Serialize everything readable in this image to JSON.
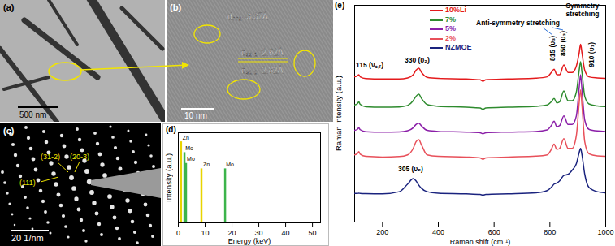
{
  "images": [
    {
      "panel": "(a)",
      "scale_bar": "500 nm"
    },
    {
      "panel": "(b)",
      "scale_bar": "10 nm",
      "d_spacings": [
        "d₀₀₂=3.37Å",
        "d₂₂₋₁=2.62Å",
        "d₃₁₋₁=2.82Å"
      ]
    },
    {
      "panel": "(c)",
      "scale_bar": "20 1/nm",
      "planes": [
        "(31-2)",
        "(20-3)",
        "(111)"
      ]
    }
  ],
  "chart_data": [
    {
      "panel": "(d)",
      "type": "stem",
      "xlabel": "Energy (keV)",
      "ylabel": "Intensity (a.u.)",
      "categories": [
        "Zn",
        "Mo",
        "Mo",
        "Zn",
        "Mo"
      ],
      "x": [
        1.01,
        2.29,
        2.87,
        8.63,
        17.44
      ],
      "values": [
        0.9,
        0.78,
        0.66,
        0.6,
        0.6
      ],
      "colors": [
        "#e8d400",
        "#3cb44b",
        "#3cb44b",
        "#e8d400",
        "#3cb44b"
      ],
      "xlim": [
        0,
        53
      ],
      "xticks": [
        0,
        10,
        20,
        30,
        40,
        50
      ],
      "ylim": [
        0,
        1
      ],
      "tick_labels": "x"
    },
    {
      "panel": "(e)",
      "type": "line",
      "xlabel": "Raman shift (cm⁻¹)",
      "ylabel": "Raman intensity (a.u.)",
      "x": [
        100,
        110,
        115,
        120,
        140,
        200,
        260,
        290,
        310,
        320,
        330,
        340,
        360,
        400,
        500,
        550,
        560,
        570,
        650,
        750,
        790,
        805,
        815,
        825,
        835,
        850,
        865,
        880,
        895,
        905,
        910,
        915,
        925,
        940,
        970,
        1000
      ],
      "series": [
        {
          "name": "10%Li",
          "color": "#e41a1c",
          "values": [
            67,
            67.5,
            68,
            67,
            66.2,
            66,
            66,
            66.5,
            68,
            70,
            71,
            69,
            66.8,
            66.3,
            66,
            65.6,
            65,
            65.6,
            66,
            66.4,
            67,
            69,
            70.5,
            68,
            68,
            72.5,
            69,
            69,
            72,
            78,
            82,
            78,
            70,
            67,
            66.5,
            66.3
          ]
        },
        {
          "name": "7%",
          "color": "#2e8b2e",
          "values": [
            54,
            54.6,
            55.5,
            54.3,
            53.2,
            53,
            53.1,
            53.8,
            56,
            58,
            59,
            57,
            54.2,
            53.4,
            53,
            52.6,
            52,
            52.6,
            53,
            53.4,
            54,
            55.5,
            57,
            55,
            55.5,
            60.5,
            56,
            56,
            60,
            70,
            74,
            69,
            58,
            54.5,
            53.6,
            53.3
          ]
        },
        {
          "name": "5%",
          "color": "#8b1fa8",
          "values": [
            42.3,
            42.8,
            43.5,
            42.6,
            41.7,
            41.5,
            41.6,
            42.1,
            43.5,
            45,
            45.6,
            44.3,
            42.3,
            41.8,
            41.5,
            41.2,
            40.7,
            41.2,
            41.5,
            41.8,
            42.5,
            44.5,
            46.5,
            44,
            44.5,
            49,
            45,
            45,
            49,
            62,
            68,
            61,
            47,
            42.8,
            42,
            41.8
          ]
        },
        {
          "name": "2%",
          "color": "#e8505a",
          "values": [
            31,
            31.6,
            32.5,
            31.3,
            30.3,
            30,
            30.2,
            31,
            34,
            37,
            38,
            35.5,
            31,
            30.3,
            30,
            29.6,
            29,
            29.6,
            30,
            30.4,
            31,
            33.5,
            36,
            33.5,
            34,
            38.5,
            34,
            34,
            40,
            55,
            61,
            54,
            37,
            31.5,
            30.5,
            30.3
          ]
        },
        {
          "name": "NZMOE",
          "color": "#1a237e",
          "values": [
            13.2,
            13.2,
            13.3,
            13.2,
            13.1,
            13,
            14,
            17.5,
            20,
            19,
            17,
            15.5,
            14,
            13.3,
            13,
            12.7,
            12.4,
            12.7,
            13,
            13.5,
            14.5,
            16,
            17.5,
            18,
            19,
            21.5,
            22,
            24,
            27,
            32,
            34,
            31,
            22,
            16,
            14,
            13.5
          ]
        }
      ],
      "annotations": [
        "115 (νₛ,ᵣ)",
        "330 (υ₂)",
        "305 (υ₂)",
        "Anti-symmetry stretching",
        "815 (υ₃)",
        "850 (υ₃)",
        "Symmetry stretching",
        "910 (υ₁)"
      ],
      "xlim": [
        100,
        1000
      ],
      "xticks": [
        200,
        400,
        600,
        800,
        1000
      ],
      "ylim": [
        0,
        100
      ],
      "tick_labels": "x",
      "legend": "top-left"
    }
  ]
}
